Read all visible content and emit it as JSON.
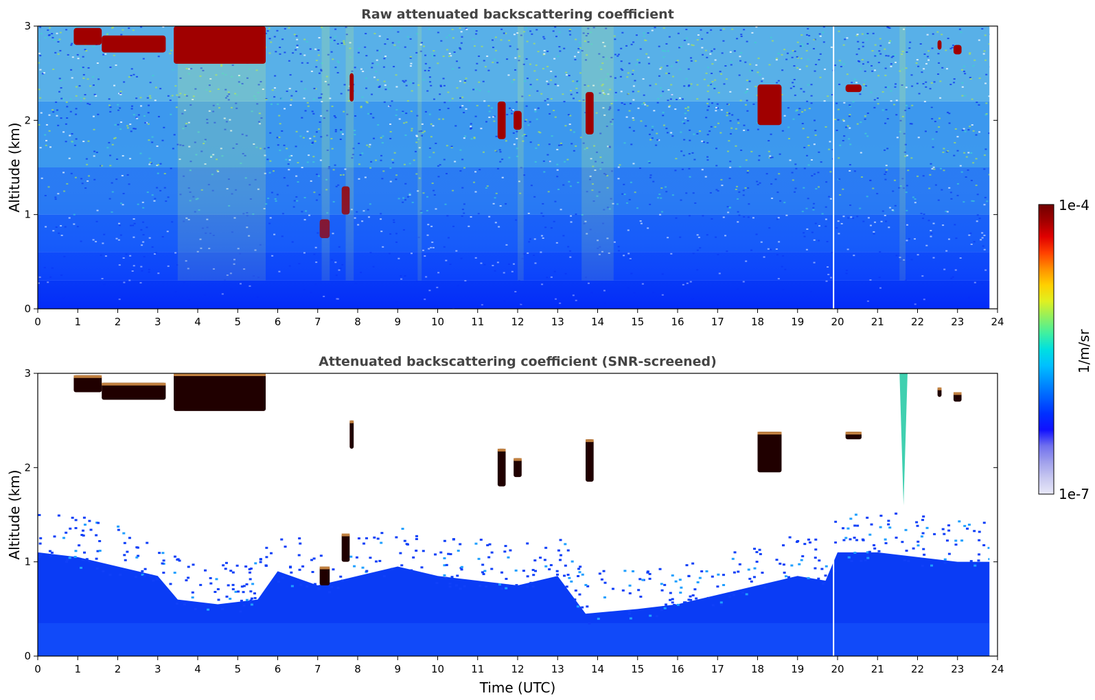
{
  "chart_data": [
    {
      "type": "heatmap",
      "title": "Raw attenuated backscattering coefficient",
      "xlabel": "",
      "ylabel": "Altitude (km)",
      "xlim": [
        0,
        24
      ],
      "ylim": [
        0,
        3
      ],
      "xticks": [
        "0",
        "1",
        "2",
        "3",
        "4",
        "5",
        "6",
        "7",
        "8",
        "9",
        "10",
        "11",
        "12",
        "13",
        "14",
        "15",
        "16",
        "17",
        "18",
        "19",
        "20",
        "21",
        "22",
        "23",
        "24"
      ],
      "yticks": [
        "0",
        "1",
        "2",
        "3"
      ],
      "data_end_hour": 23.8,
      "gap_hour": 19.9,
      "clouds": [
        {
          "t0": 0.9,
          "t1": 1.6,
          "h0": 2.8,
          "h1": 2.98
        },
        {
          "t0": 1.6,
          "t1": 3.2,
          "h0": 2.72,
          "h1": 2.9
        },
        {
          "t0": 3.4,
          "t1": 5.7,
          "h0": 2.6,
          "h1": 3.0
        },
        {
          "t0": 7.05,
          "t1": 7.3,
          "h0": 0.75,
          "h1": 0.95
        },
        {
          "t0": 7.6,
          "t1": 7.8,
          "h0": 1.0,
          "h1": 1.3
        },
        {
          "t0": 7.8,
          "t1": 7.9,
          "h0": 2.2,
          "h1": 2.5
        },
        {
          "t0": 11.5,
          "t1": 11.7,
          "h0": 1.8,
          "h1": 2.2
        },
        {
          "t0": 11.9,
          "t1": 12.1,
          "h0": 1.9,
          "h1": 2.1
        },
        {
          "t0": 13.7,
          "t1": 13.9,
          "h0": 1.85,
          "h1": 2.3
        },
        {
          "t0": 18.0,
          "t1": 18.6,
          "h0": 1.95,
          "h1": 2.38
        },
        {
          "t0": 20.2,
          "t1": 20.6,
          "h0": 2.3,
          "h1": 2.38
        },
        {
          "t0": 22.5,
          "t1": 22.6,
          "h0": 2.75,
          "h1": 2.85
        },
        {
          "t0": 22.9,
          "t1": 23.1,
          "h0": 2.7,
          "h1": 2.8
        }
      ]
    },
    {
      "type": "heatmap",
      "title": "Attenuated backscattering coefficient (SNR-screened)",
      "xlabel": "Time (UTC)",
      "ylabel": "Altitude (km)",
      "xlim": [
        0,
        24
      ],
      "ylim": [
        0,
        3
      ],
      "xticks": [
        "0",
        "1",
        "2",
        "3",
        "4",
        "5",
        "6",
        "7",
        "8",
        "9",
        "10",
        "11",
        "12",
        "13",
        "14",
        "15",
        "16",
        "17",
        "18",
        "19",
        "20",
        "21",
        "22",
        "23",
        "24"
      ],
      "yticks": [
        "0",
        "1",
        "2",
        "3"
      ],
      "boundary_layer_top_km": [
        {
          "t": 0.0,
          "h": 1.1
        },
        {
          "t": 1.0,
          "h": 1.05
        },
        {
          "t": 2.0,
          "h": 0.95
        },
        {
          "t": 3.0,
          "h": 0.85
        },
        {
          "t": 3.5,
          "h": 0.6
        },
        {
          "t": 4.5,
          "h": 0.55
        },
        {
          "t": 5.5,
          "h": 0.6
        },
        {
          "t": 6.0,
          "h": 0.9
        },
        {
          "t": 7.0,
          "h": 0.75
        },
        {
          "t": 8.0,
          "h": 0.85
        },
        {
          "t": 9.0,
          "h": 0.95
        },
        {
          "t": 10.0,
          "h": 0.85
        },
        {
          "t": 11.0,
          "h": 0.8
        },
        {
          "t": 12.0,
          "h": 0.75
        },
        {
          "t": 13.0,
          "h": 0.85
        },
        {
          "t": 13.7,
          "h": 0.45
        },
        {
          "t": 15.0,
          "h": 0.5
        },
        {
          "t": 16.0,
          "h": 0.55
        },
        {
          "t": 17.0,
          "h": 0.65
        },
        {
          "t": 18.0,
          "h": 0.75
        },
        {
          "t": 19.0,
          "h": 0.85
        },
        {
          "t": 19.7,
          "h": 0.8
        },
        {
          "t": 20.0,
          "h": 1.1
        },
        {
          "t": 21.0,
          "h": 1.1
        },
        {
          "t": 22.0,
          "h": 1.05
        },
        {
          "t": 23.0,
          "h": 1.0
        },
        {
          "t": 23.8,
          "h": 1.0
        }
      ]
    }
  ],
  "colorbar": {
    "label": "1/m/sr",
    "max_label": "1e-4",
    "min_label": "1e-7",
    "colors": [
      "#e8e8f8",
      "#c8c8f0",
      "#a0a0ec",
      "#7070ee",
      "#1010ff",
      "#0030ff",
      "#0060ff",
      "#0090ff",
      "#00c0ff",
      "#00e0e0",
      "#40f0a0",
      "#90f060",
      "#e0f020",
      "#ffd000",
      "#ff9000",
      "#ff4000",
      "#e00000",
      "#a00000",
      "#700000"
    ]
  }
}
